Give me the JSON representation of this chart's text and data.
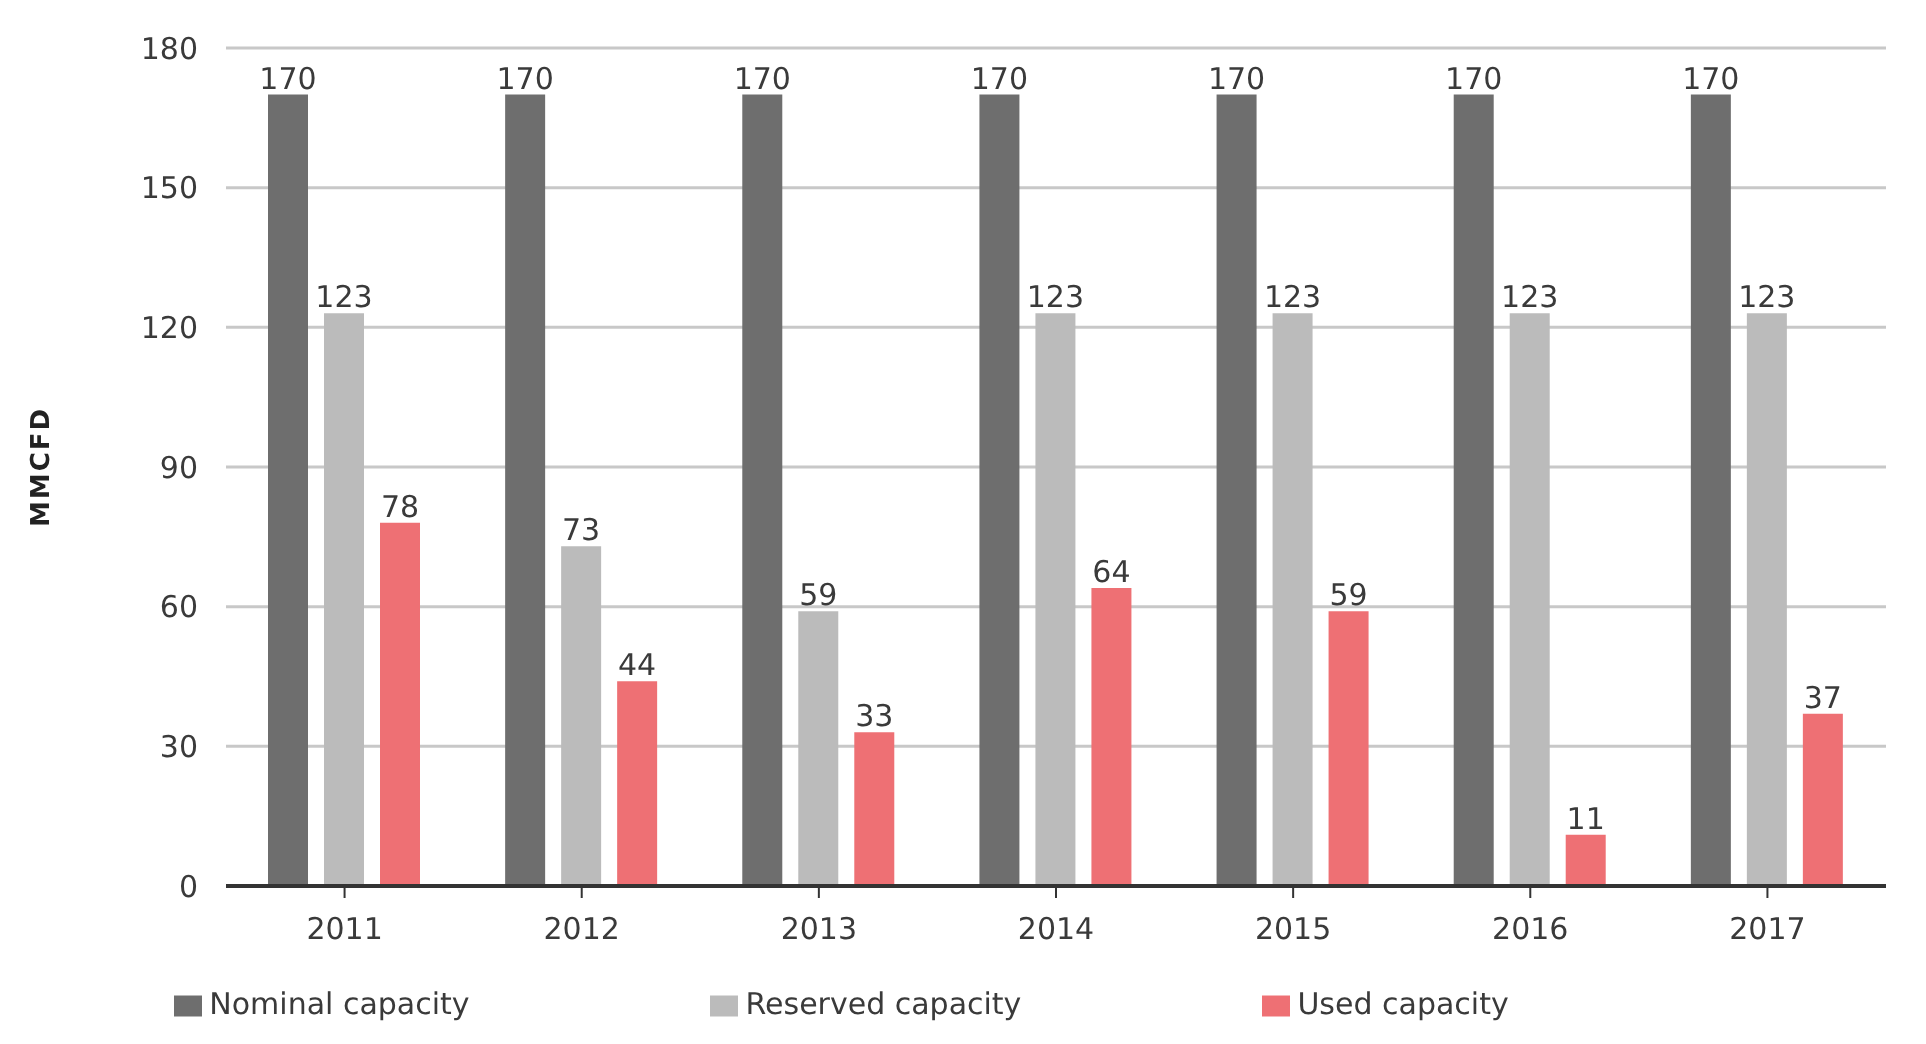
{
  "chart_data": {
    "type": "bar",
    "ylabel": "MMCFD",
    "categories": [
      "2011",
      "2012",
      "2013",
      "2014",
      "2015",
      "2016",
      "2017"
    ],
    "series": [
      {
        "name": "Nominal capacity",
        "color": "#6e6e6e",
        "values": [
          170,
          170,
          170,
          170,
          170,
          170,
          170
        ]
      },
      {
        "name": "Reserved capacity",
        "color": "#bbbbbb",
        "values": [
          123,
          73,
          59,
          123,
          123,
          123,
          123
        ]
      },
      {
        "name": "Used capacity",
        "color": "#ee7074",
        "values": [
          78,
          44,
          33,
          64,
          59,
          11,
          37
        ]
      }
    ],
    "ylim": [
      0,
      180
    ],
    "yticks": [
      0,
      30,
      60,
      90,
      120,
      150,
      180
    ],
    "grid": "y",
    "legend": "bottom",
    "data_labels": true
  }
}
